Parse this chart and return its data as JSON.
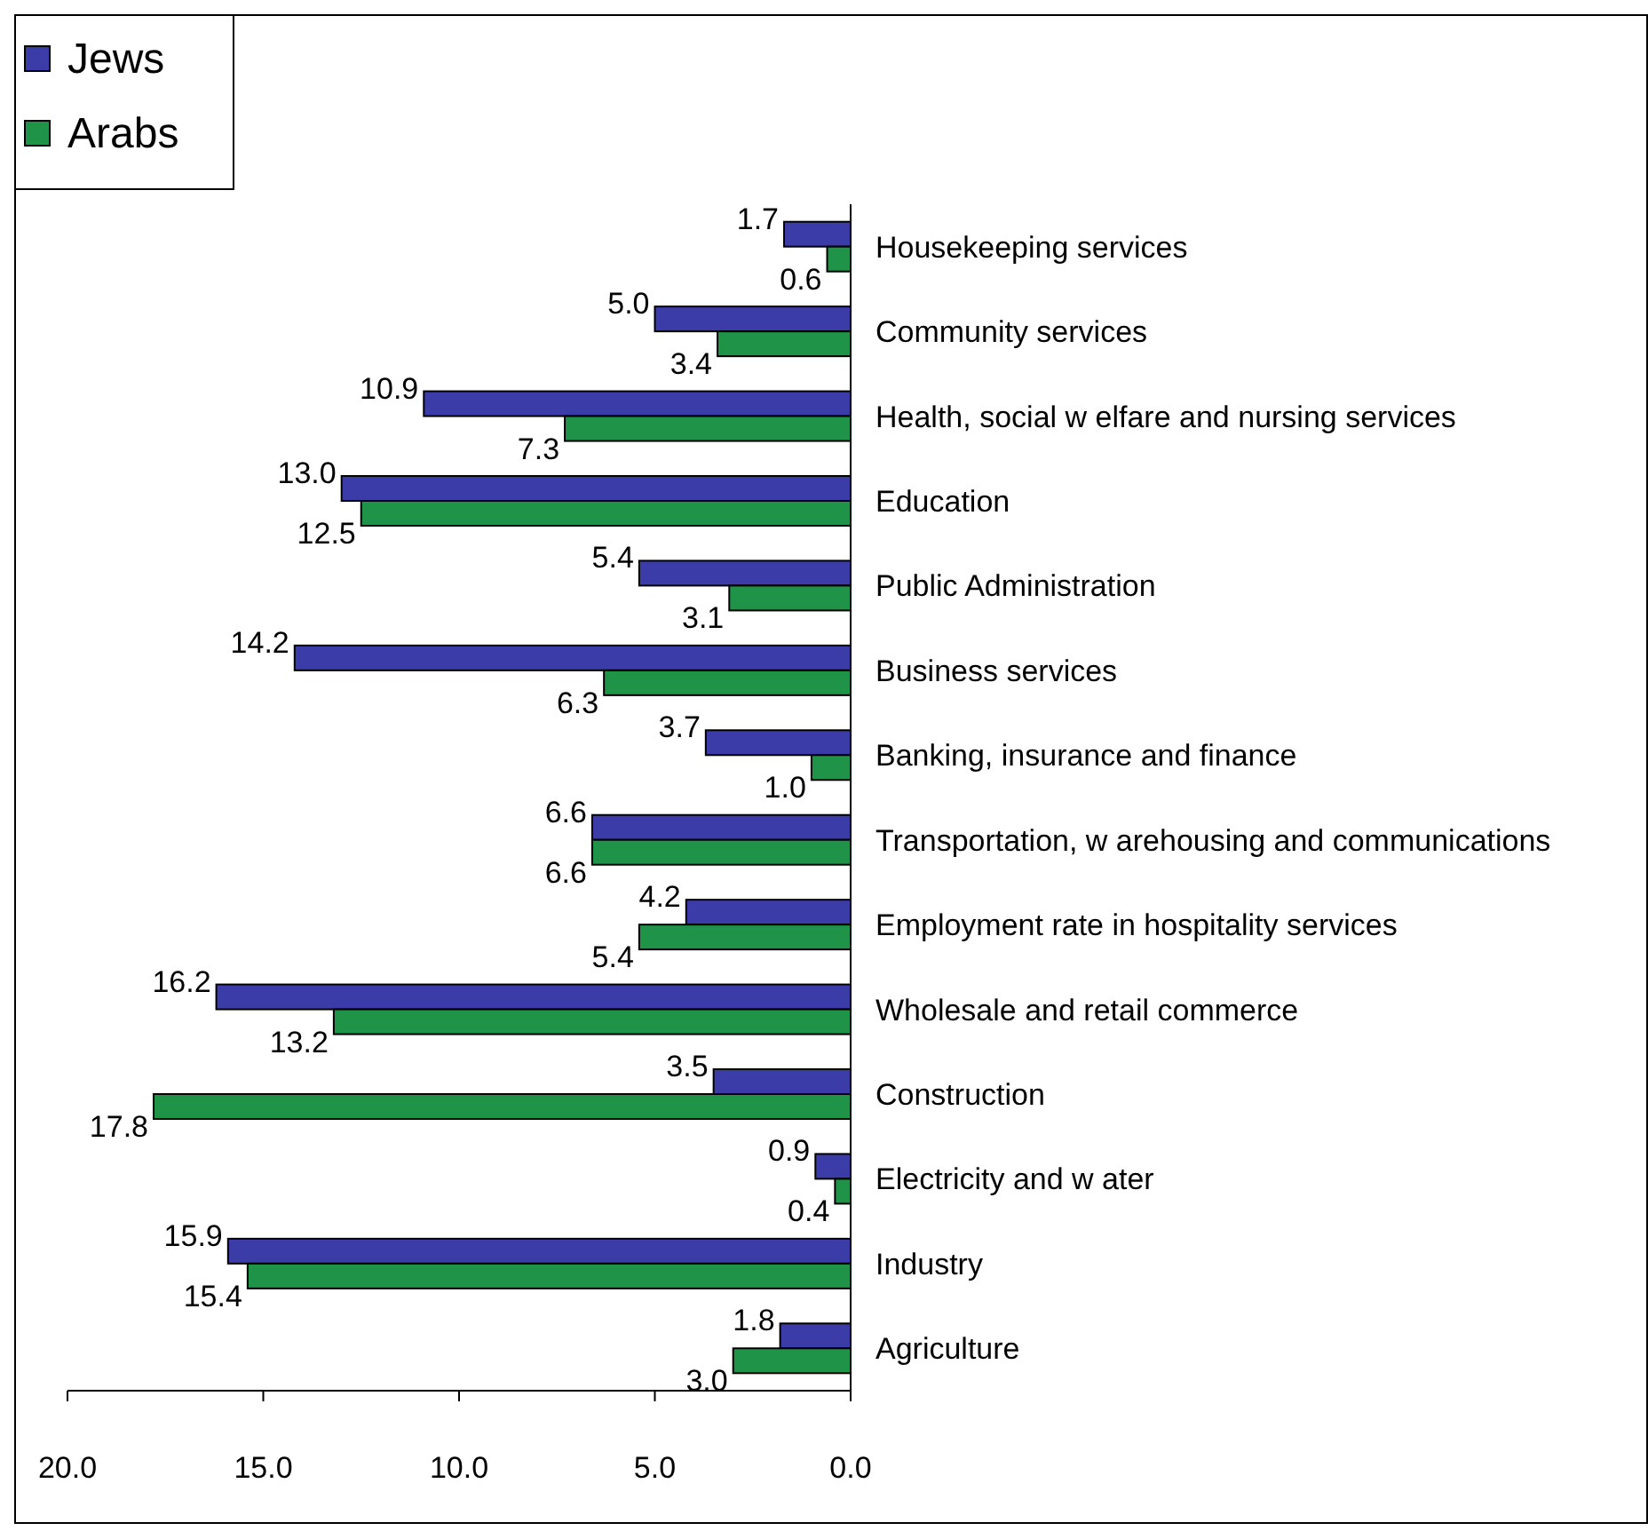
{
  "chart_data": {
    "type": "bar",
    "orientation": "horizontal",
    "categories": [
      "Housekeeping services",
      "Community services",
      "Health, social w elfare and nursing services",
      "Education",
      "Public Administration",
      "Business services",
      "Banking, insurance and finance",
      "Transportation, w arehousing and communications",
      "Employment rate in hospitality services",
      "Wholesale and retail commerce",
      "Construction",
      "Electricity and w ater",
      "Industry",
      "Agriculture"
    ],
    "series": [
      {
        "name": "Jews",
        "color": "#3c3ca8",
        "values": [
          1.7,
          5.0,
          10.9,
          13.0,
          5.4,
          14.2,
          3.7,
          6.6,
          4.2,
          16.2,
          3.5,
          0.9,
          15.9,
          1.8
        ],
        "value_labels": [
          "1.7",
          "5.0",
          "10.9",
          "13.0",
          "5.4",
          "14.2",
          "3.7",
          "6.6",
          "4.2",
          "16.2",
          "3.5",
          "0.9",
          "15.9",
          "1.8"
        ]
      },
      {
        "name": "Arabs",
        "color": "#1f9448",
        "values": [
          0.6,
          3.4,
          7.3,
          12.5,
          3.1,
          6.3,
          1.0,
          6.6,
          5.4,
          13.2,
          17.8,
          0.4,
          15.4,
          3.0
        ],
        "value_labels": [
          "0.6",
          "3.4",
          "7.3",
          "12.5",
          "3.1",
          "6.3",
          "1.0",
          "6.6",
          "5.4",
          "13.2",
          "17.8",
          "0.4",
          "15.4",
          "3.0"
        ]
      }
    ],
    "xlim": [
      20,
      0
    ],
    "xticks": [
      {
        "value": 20,
        "label": "20.0"
      },
      {
        "value": 15,
        "label": "15.0"
      },
      {
        "value": 10,
        "label": "10.0"
      },
      {
        "value": 5,
        "label": "5.0"
      },
      {
        "value": 0,
        "label": "0.0"
      }
    ],
    "grid": false,
    "legend": "top left"
  }
}
